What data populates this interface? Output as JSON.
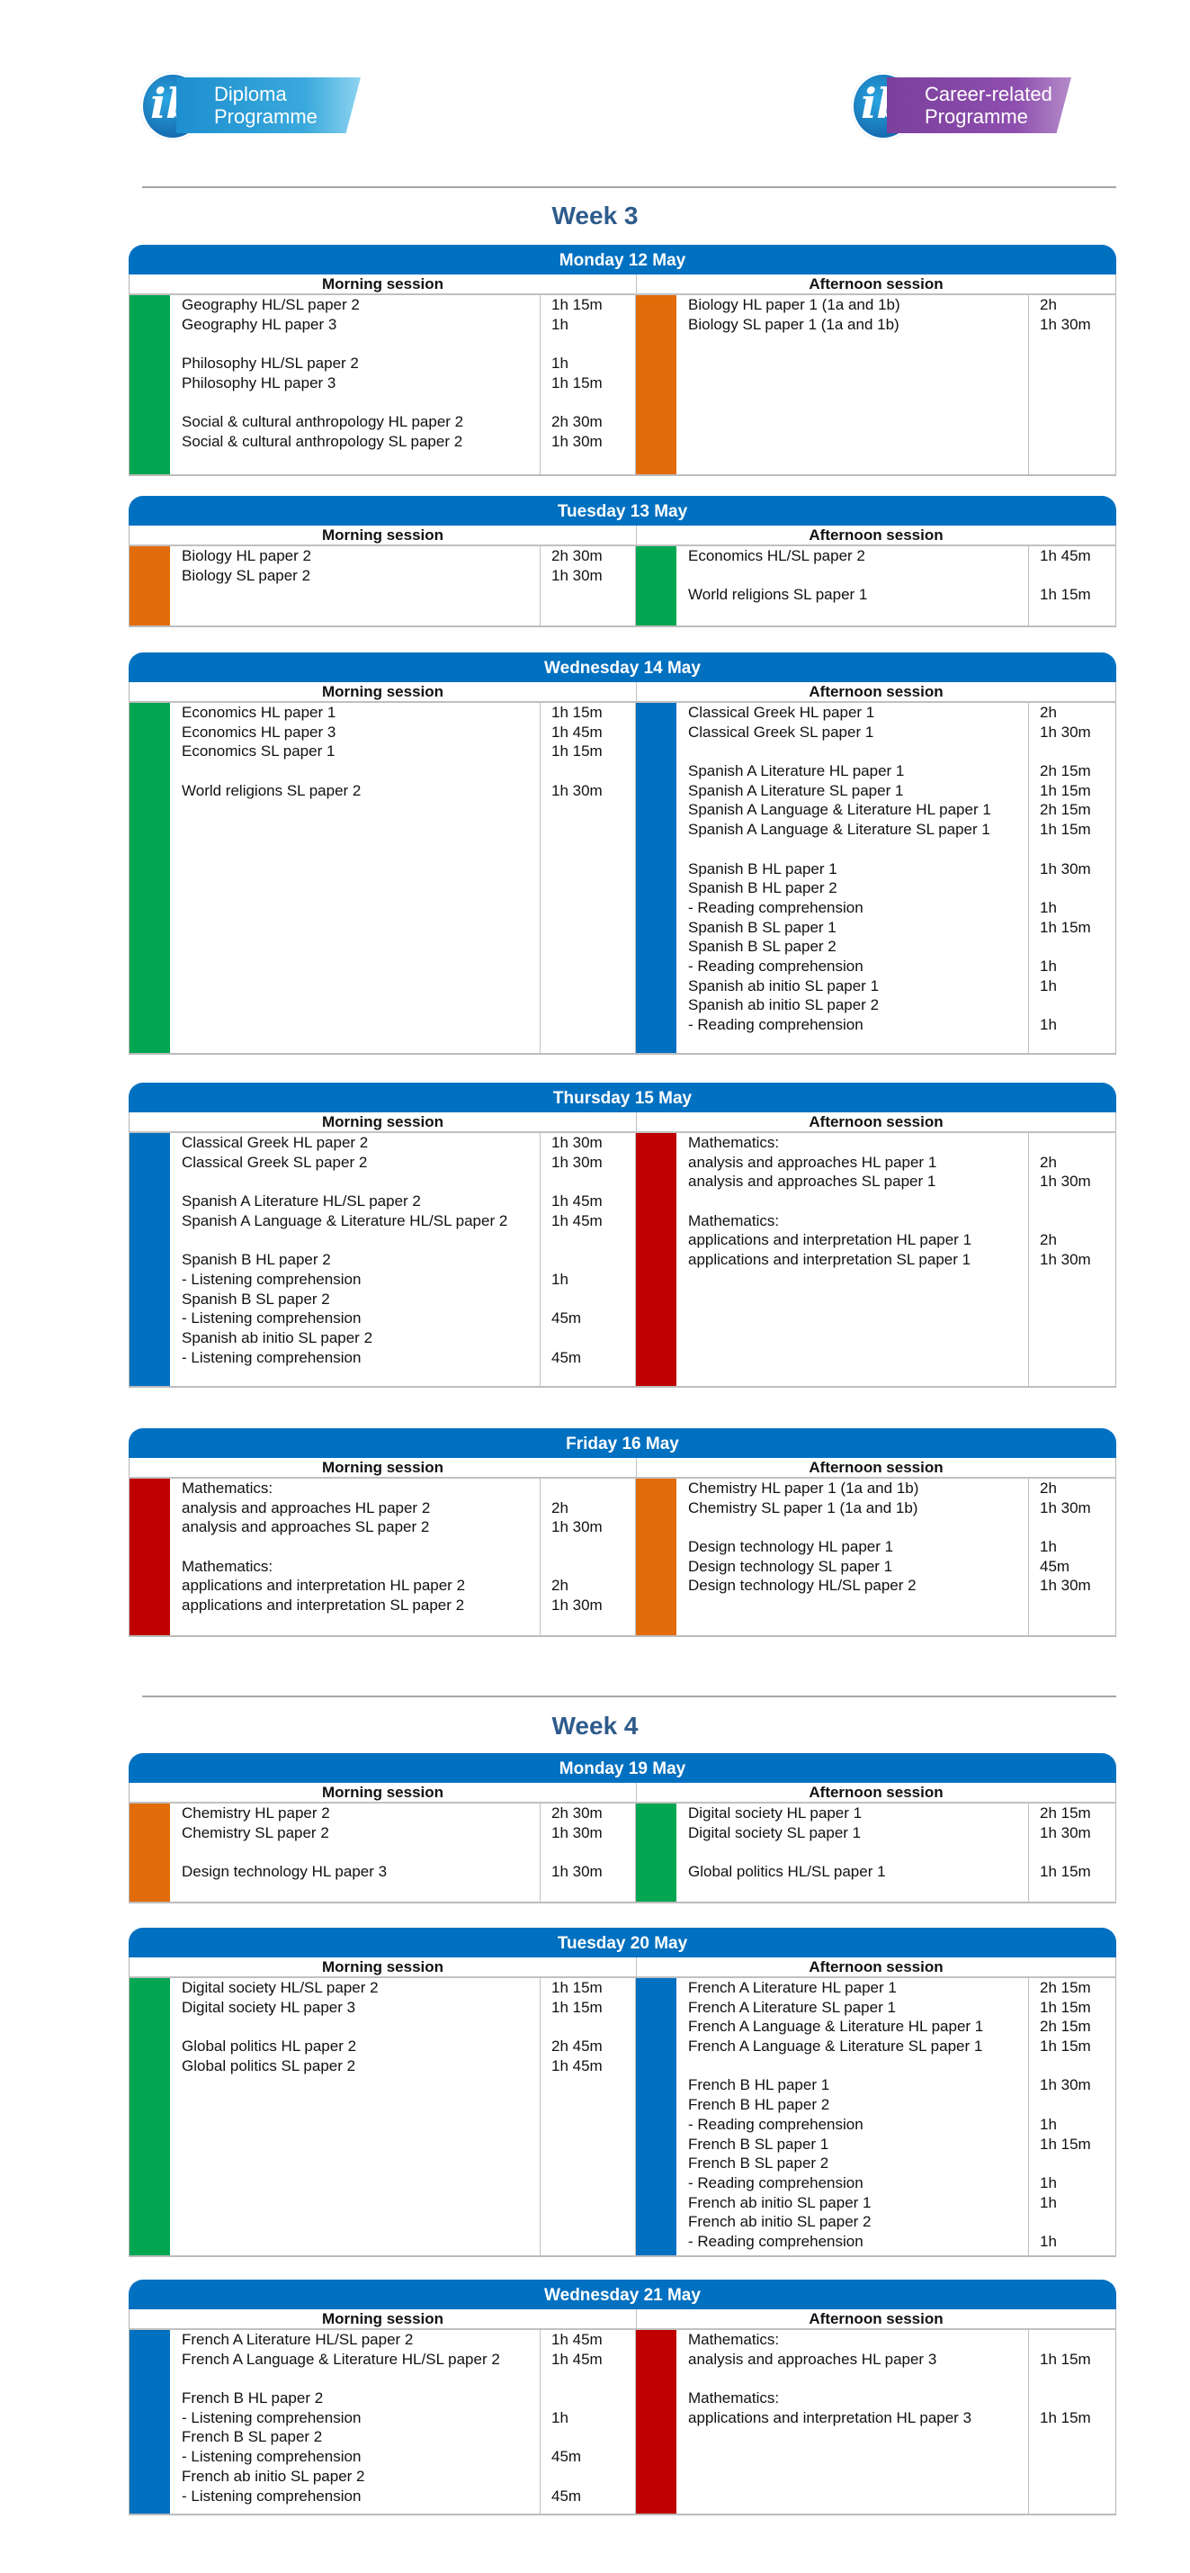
{
  "logos": {
    "left": {
      "mark": "ib",
      "text_line1": "Diploma",
      "text_line2": "Programme",
      "color": "#1d8fcf"
    },
    "right": {
      "mark": "ib",
      "text_line1": "Career-related",
      "text_line2": "Programme",
      "color": "#7b3f9c"
    }
  },
  "colors": {
    "header": "#0070c0",
    "green": "#00a651",
    "orange": "#e36c0a",
    "blue": "#0070c0",
    "red": "#c00000",
    "week_title": "#2f5b8c"
  },
  "weeks": [
    {
      "title": "Week 3",
      "days": [
        {
          "title": "Monday 12 May",
          "morning": {
            "label": "Morning session",
            "color": "green",
            "rows": [
              {
                "exam": "Geography HL/SL paper 2",
                "duration": "1h 15m"
              },
              {
                "exam": "Geography HL paper 3",
                "duration": "1h"
              },
              {
                "exam": "",
                "duration": ""
              },
              {
                "exam": "Philosophy HL/SL paper 2",
                "duration": "1h"
              },
              {
                "exam": "Philosophy HL paper 3",
                "duration": "1h 15m"
              },
              {
                "exam": "",
                "duration": ""
              },
              {
                "exam": "Social & cultural anthropology HL paper 2",
                "duration": "2h 30m"
              },
              {
                "exam": "Social & cultural anthropology SL paper 2",
                "duration": "1h 30m"
              }
            ]
          },
          "afternoon": {
            "label": "Afternoon session",
            "color": "orange",
            "rows": [
              {
                "exam": "Biology HL paper 1 (1a and 1b)",
                "duration": "2h"
              },
              {
                "exam": "Biology SL paper 1 (1a and 1b)",
                "duration": "1h 30m"
              }
            ]
          }
        },
        {
          "title": "Tuesday 13 May",
          "morning": {
            "label": "Morning session",
            "color": "orange",
            "rows": [
              {
                "exam": "Biology HL paper 2",
                "duration": "2h 30m"
              },
              {
                "exam": "Biology SL paper 2",
                "duration": "1h 30m"
              }
            ]
          },
          "afternoon": {
            "label": "Afternoon session",
            "color": "green",
            "rows": [
              {
                "exam": "Economics HL/SL paper 2",
                "duration": "1h 45m"
              },
              {
                "exam": "",
                "duration": ""
              },
              {
                "exam": "World religions SL paper 1",
                "duration": "1h 15m"
              }
            ]
          }
        },
        {
          "title": "Wednesday 14 May",
          "morning": {
            "label": "Morning session",
            "color": "green",
            "rows": [
              {
                "exam": "Economics HL paper 1",
                "duration": "1h 15m"
              },
              {
                "exam": "Economics HL paper 3",
                "duration": "1h 45m"
              },
              {
                "exam": "Economics SL paper 1",
                "duration": "1h 15m"
              },
              {
                "exam": "",
                "duration": ""
              },
              {
                "exam": "World religions SL paper 2",
                "duration": "1h 30m"
              }
            ]
          },
          "afternoon": {
            "label": "Afternoon session",
            "color": "blue",
            "rows": [
              {
                "exam": "Classical Greek HL paper 1",
                "duration": "2h"
              },
              {
                "exam": "Classical Greek SL paper 1",
                "duration": "1h 30m"
              },
              {
                "exam": "",
                "duration": ""
              },
              {
                "exam": "Spanish A Literature HL paper 1",
                "duration": "2h 15m"
              },
              {
                "exam": "Spanish A Literature SL paper 1",
                "duration": "1h 15m"
              },
              {
                "exam": "Spanish A Language & Literature HL paper 1",
                "duration": "2h 15m"
              },
              {
                "exam": "Spanish A Language & Literature SL paper 1",
                "duration": "1h 15m"
              },
              {
                "exam": "",
                "duration": ""
              },
              {
                "exam": "Spanish B HL paper 1",
                "duration": "1h 30m"
              },
              {
                "exam": "Spanish B HL paper 2",
                "duration": ""
              },
              {
                "exam": "- Reading comprehension",
                "duration": "1h"
              },
              {
                "exam": "Spanish B SL paper 1",
                "duration": "1h 15m"
              },
              {
                "exam": "Spanish B SL paper 2",
                "duration": ""
              },
              {
                "exam": "- Reading comprehension",
                "duration": "1h"
              },
              {
                "exam": "Spanish ab initio SL paper 1",
                "duration": "1h"
              },
              {
                "exam": "Spanish ab initio SL paper 2",
                "duration": ""
              },
              {
                "exam": "- Reading comprehension",
                "duration": "1h"
              }
            ]
          }
        },
        {
          "title": "Thursday 15 May",
          "morning": {
            "label": "Morning session",
            "color": "blue",
            "rows": [
              {
                "exam": "Classical Greek HL paper 2",
                "duration": "1h 30m"
              },
              {
                "exam": "Classical Greek SL paper 2",
                "duration": "1h 30m"
              },
              {
                "exam": "",
                "duration": ""
              },
              {
                "exam": "Spanish A Literature HL/SL paper 2",
                "duration": "1h 45m"
              },
              {
                "exam": "Spanish A Language & Literature HL/SL paper 2",
                "duration": "1h 45m"
              },
              {
                "exam": "",
                "duration": ""
              },
              {
                "exam": "Spanish B HL paper 2",
                "duration": ""
              },
              {
                "exam": "- Listening comprehension",
                "duration": "1h"
              },
              {
                "exam": "Spanish B SL paper 2",
                "duration": ""
              },
              {
                "exam": "- Listening comprehension",
                "duration": "45m"
              },
              {
                "exam": "Spanish ab initio SL paper 2",
                "duration": ""
              },
              {
                "exam": "- Listening comprehension",
                "duration": "45m"
              }
            ]
          },
          "afternoon": {
            "label": "Afternoon session",
            "color": "red",
            "rows": [
              {
                "exam": "Mathematics:",
                "duration": ""
              },
              {
                "exam": "analysis and approaches HL paper 1",
                "duration": "2h"
              },
              {
                "exam": "analysis and approaches SL paper 1",
                "duration": "1h 30m"
              },
              {
                "exam": "",
                "duration": ""
              },
              {
                "exam": "Mathematics:",
                "duration": ""
              },
              {
                "exam": "applications and interpretation HL paper 1",
                "duration": "2h"
              },
              {
                "exam": "applications and interpretation SL paper 1",
                "duration": "1h 30m"
              }
            ]
          }
        },
        {
          "title": "Friday 16 May",
          "morning": {
            "label": "Morning session",
            "color": "red",
            "rows": [
              {
                "exam": "Mathematics:",
                "duration": ""
              },
              {
                "exam": "analysis and approaches HL paper 2",
                "duration": "2h"
              },
              {
                "exam": "analysis and approaches SL paper 2",
                "duration": "1h 30m"
              },
              {
                "exam": "",
                "duration": ""
              },
              {
                "exam": "Mathematics:",
                "duration": ""
              },
              {
                "exam": "applications and interpretation HL paper 2",
                "duration": "2h"
              },
              {
                "exam": "applications and interpretation SL paper 2",
                "duration": "1h 30m"
              }
            ]
          },
          "afternoon": {
            "label": "Afternoon session",
            "color": "orange",
            "rows": [
              {
                "exam": "Chemistry HL paper 1 (1a and 1b)",
                "duration": "2h"
              },
              {
                "exam": "Chemistry SL paper 1 (1a and 1b)",
                "duration": "1h 30m"
              },
              {
                "exam": "",
                "duration": ""
              },
              {
                "exam": "Design technology HL paper 1",
                "duration": "1h"
              },
              {
                "exam": "Design technology SL paper 1",
                "duration": "45m"
              },
              {
                "exam": "Design technology HL/SL paper 2",
                "duration": "1h 30m"
              }
            ]
          }
        }
      ]
    },
    {
      "title": "Week 4",
      "days": [
        {
          "title": "Monday 19 May",
          "morning": {
            "label": "Morning session",
            "color": "orange",
            "rows": [
              {
                "exam": "Chemistry HL paper 2",
                "duration": "2h 30m"
              },
              {
                "exam": "Chemistry SL paper 2",
                "duration": "1h 30m"
              },
              {
                "exam": "",
                "duration": ""
              },
              {
                "exam": "Design technology HL paper 3",
                "duration": "1h 30m"
              }
            ]
          },
          "afternoon": {
            "label": "Afternoon session",
            "color": "green",
            "rows": [
              {
                "exam": "Digital society HL paper 1",
                "duration": "2h 15m"
              },
              {
                "exam": "Digital society SL paper 1",
                "duration": "1h 30m"
              },
              {
                "exam": "",
                "duration": ""
              },
              {
                "exam": "Global politics HL/SL paper 1",
                "duration": "1h 15m"
              }
            ]
          }
        },
        {
          "title": "Tuesday 20 May",
          "morning": {
            "label": "Morning session",
            "color": "green",
            "rows": [
              {
                "exam": "Digital society HL/SL paper 2",
                "duration": "1h 15m"
              },
              {
                "exam": "Digital society HL paper 3",
                "duration": "1h 15m"
              },
              {
                "exam": "",
                "duration": ""
              },
              {
                "exam": "Global politics HL paper 2",
                "duration": "2h 45m"
              },
              {
                "exam": "Global politics SL paper 2",
                "duration": "1h 45m"
              }
            ]
          },
          "afternoon": {
            "label": "Afternoon session",
            "color": "blue",
            "rows": [
              {
                "exam": "French A Literature HL paper 1",
                "duration": "2h 15m"
              },
              {
                "exam": "French A Literature SL paper 1",
                "duration": "1h 15m"
              },
              {
                "exam": "French A Language & Literature HL paper 1",
                "duration": "2h 15m"
              },
              {
                "exam": "French A Language & Literature SL paper 1",
                "duration": "1h 15m"
              },
              {
                "exam": "",
                "duration": ""
              },
              {
                "exam": "French B HL paper 1",
                "duration": "1h 30m"
              },
              {
                "exam": "French B HL paper 2",
                "duration": ""
              },
              {
                "exam": "- Reading comprehension",
                "duration": "1h"
              },
              {
                "exam": "French B SL paper 1",
                "duration": "1h 15m"
              },
              {
                "exam": "French B SL paper 2",
                "duration": ""
              },
              {
                "exam": "- Reading comprehension",
                "duration": "1h"
              },
              {
                "exam": "French ab initio SL paper 1",
                "duration": "1h"
              },
              {
                "exam": "French ab initio SL paper 2",
                "duration": ""
              },
              {
                "exam": "- Reading comprehension",
                "duration": "1h"
              }
            ]
          }
        },
        {
          "title": "Wednesday 21 May",
          "morning": {
            "label": "Morning session",
            "color": "blue",
            "rows": [
              {
                "exam": "French A Literature HL/SL paper 2",
                "duration": "1h 45m"
              },
              {
                "exam": "French A Language & Literature HL/SL paper 2",
                "duration": "1h 45m"
              },
              {
                "exam": "",
                "duration": ""
              },
              {
                "exam": "French B HL paper 2",
                "duration": ""
              },
              {
                "exam": "- Listening comprehension",
                "duration": "1h"
              },
              {
                "exam": "French B SL paper 2",
                "duration": ""
              },
              {
                "exam": "- Listening comprehension",
                "duration": "45m"
              },
              {
                "exam": "French ab initio SL paper 2",
                "duration": ""
              },
              {
                "exam": "- Listening comprehension",
                "duration": "45m"
              }
            ]
          },
          "afternoon": {
            "label": "Afternoon session",
            "color": "red",
            "rows": [
              {
                "exam": "Mathematics:",
                "duration": ""
              },
              {
                "exam": "analysis and approaches HL paper 3",
                "duration": "1h 15m"
              },
              {
                "exam": "",
                "duration": ""
              },
              {
                "exam": "Mathematics:",
                "duration": ""
              },
              {
                "exam": "applications and interpretation HL paper 3",
                "duration": "1h 15m"
              }
            ]
          }
        }
      ]
    }
  ]
}
